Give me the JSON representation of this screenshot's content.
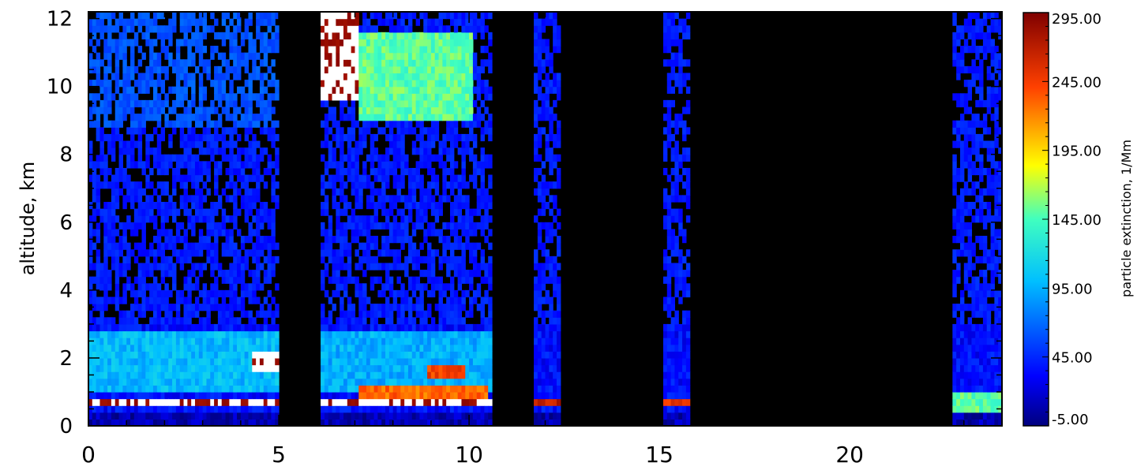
{
  "chart_data": {
    "type": "heatmap",
    "title": "",
    "xlabel": "",
    "ylabel": "altitude, km",
    "xlim": [
      0,
      24
    ],
    "ylim": [
      0,
      12.2
    ],
    "x_tick_labels": [
      "0",
      "5",
      "10",
      "15",
      "20"
    ],
    "x_tick_values": [
      0,
      5,
      10,
      15,
      20
    ],
    "y_tick_labels": [
      "0",
      "2",
      "4",
      "6",
      "8",
      "10",
      "12"
    ],
    "y_tick_values": [
      0,
      2,
      4,
      6,
      8,
      10,
      12
    ],
    "colorbar": {
      "label": "particle extinction, 1/Mm",
      "min": -5,
      "max": 295,
      "tick_labels": [
        "295.00",
        "245.00",
        "195.00",
        "145.00",
        "95.00",
        "45.00",
        "-5.00"
      ],
      "tick_values": [
        295,
        245,
        195,
        145,
        95,
        45,
        -5
      ],
      "colormap": "rainbow (dark blue to dark red)"
    },
    "no_data_intervals_hours": [
      [
        4.95,
        6.05
      ],
      [
        10.55,
        11.6
      ],
      [
        12.3,
        15.0
      ],
      [
        15.7,
        22.7
      ]
    ],
    "features": [
      {
        "x_range": [
          6.0,
          7.0
        ],
        "y_range": [
          9.5,
          12.2
        ],
        "value": 295,
        "note": "saturated white above colour scale"
      },
      {
        "x_range": [
          7.0,
          10.0
        ],
        "y_range": [
          9.0,
          11.5
        ],
        "value": 150
      },
      {
        "x_range": [
          0.0,
          4.95
        ],
        "y_range": [
          8.8,
          12.2
        ],
        "value": 55
      },
      {
        "x_range": [
          0.0,
          4.95
        ],
        "y_range": [
          1.0,
          2.8
        ],
        "value": 100
      },
      {
        "x_range": [
          6.05,
          10.55
        ],
        "y_range": [
          1.0,
          2.8
        ],
        "value": 95
      },
      {
        "x_range": [
          4.3,
          4.95
        ],
        "y_range": [
          1.5,
          2.1
        ],
        "value": 295
      },
      {
        "x_range": [
          8.8,
          9.8
        ],
        "y_range": [
          1.3,
          1.7
        ],
        "value": 245
      },
      {
        "x_range": [
          7.0,
          10.4
        ],
        "y_range": [
          0.8,
          1.2
        ],
        "value": 230
      },
      {
        "x_range": [
          0.0,
          10.55
        ],
        "y_range": [
          0.5,
          0.8
        ],
        "value": 295
      },
      {
        "x_range": [
          11.6,
          12.3
        ],
        "y_range": [
          0.5,
          0.8
        ],
        "value": 270
      },
      {
        "x_range": [
          15.0,
          15.7
        ],
        "y_range": [
          0.5,
          0.8
        ],
        "value": 250
      },
      {
        "x_range": [
          22.7,
          24.0
        ],
        "y_range": [
          0.4,
          1.0
        ],
        "value": 150
      }
    ]
  }
}
